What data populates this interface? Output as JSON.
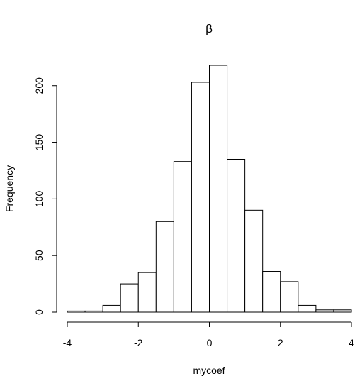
{
  "chart_data": {
    "type": "bar",
    "title": "β",
    "xlabel": "mycoef",
    "ylabel": "Frequency",
    "bin_edges": [
      -4,
      -3.5,
      -3,
      -2.5,
      -2,
      -1.5,
      -1,
      -0.5,
      0,
      0.5,
      1,
      1.5,
      2,
      2.5,
      3,
      3.5,
      4
    ],
    "values": [
      1,
      1,
      6,
      25,
      35,
      80,
      133,
      203,
      218,
      135,
      90,
      36,
      27,
      6,
      2,
      2
    ],
    "x_ticks": [
      -4,
      -2,
      0,
      2,
      4
    ],
    "x_tick_labels": [
      "-4",
      "-2",
      "0",
      "2",
      "4"
    ],
    "y_ticks": [
      0,
      50,
      100,
      150,
      200
    ],
    "y_tick_labels": [
      "0",
      "50",
      "100",
      "150",
      "200"
    ],
    "xlim": [
      -4,
      4
    ],
    "ylim": [
      0,
      218
    ],
    "grid": false,
    "legend": "none"
  }
}
